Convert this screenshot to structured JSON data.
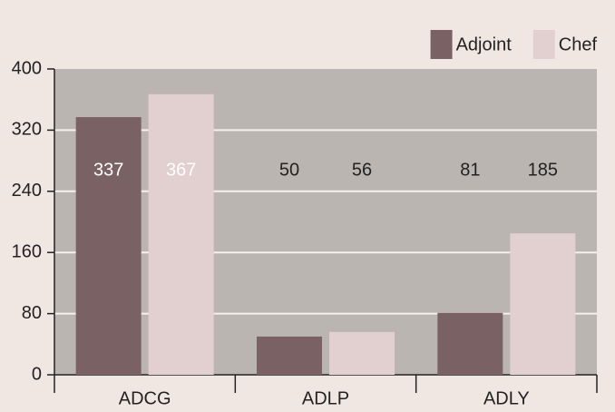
{
  "chart_data": {
    "type": "bar",
    "categories": [
      "ADCG",
      "ADLP",
      "ADLY"
    ],
    "series": [
      {
        "name": "Adjoint",
        "color": "#7a6164",
        "values": [
          337,
          50,
          81
        ]
      },
      {
        "name": "Chef",
        "color": "#e2cfd0",
        "values": [
          367,
          56,
          185
        ]
      }
    ],
    "ylim": [
      0,
      400
    ],
    "yticks": [
      0,
      80,
      160,
      240,
      320,
      400
    ],
    "grid": true,
    "legend": "top-right"
  }
}
